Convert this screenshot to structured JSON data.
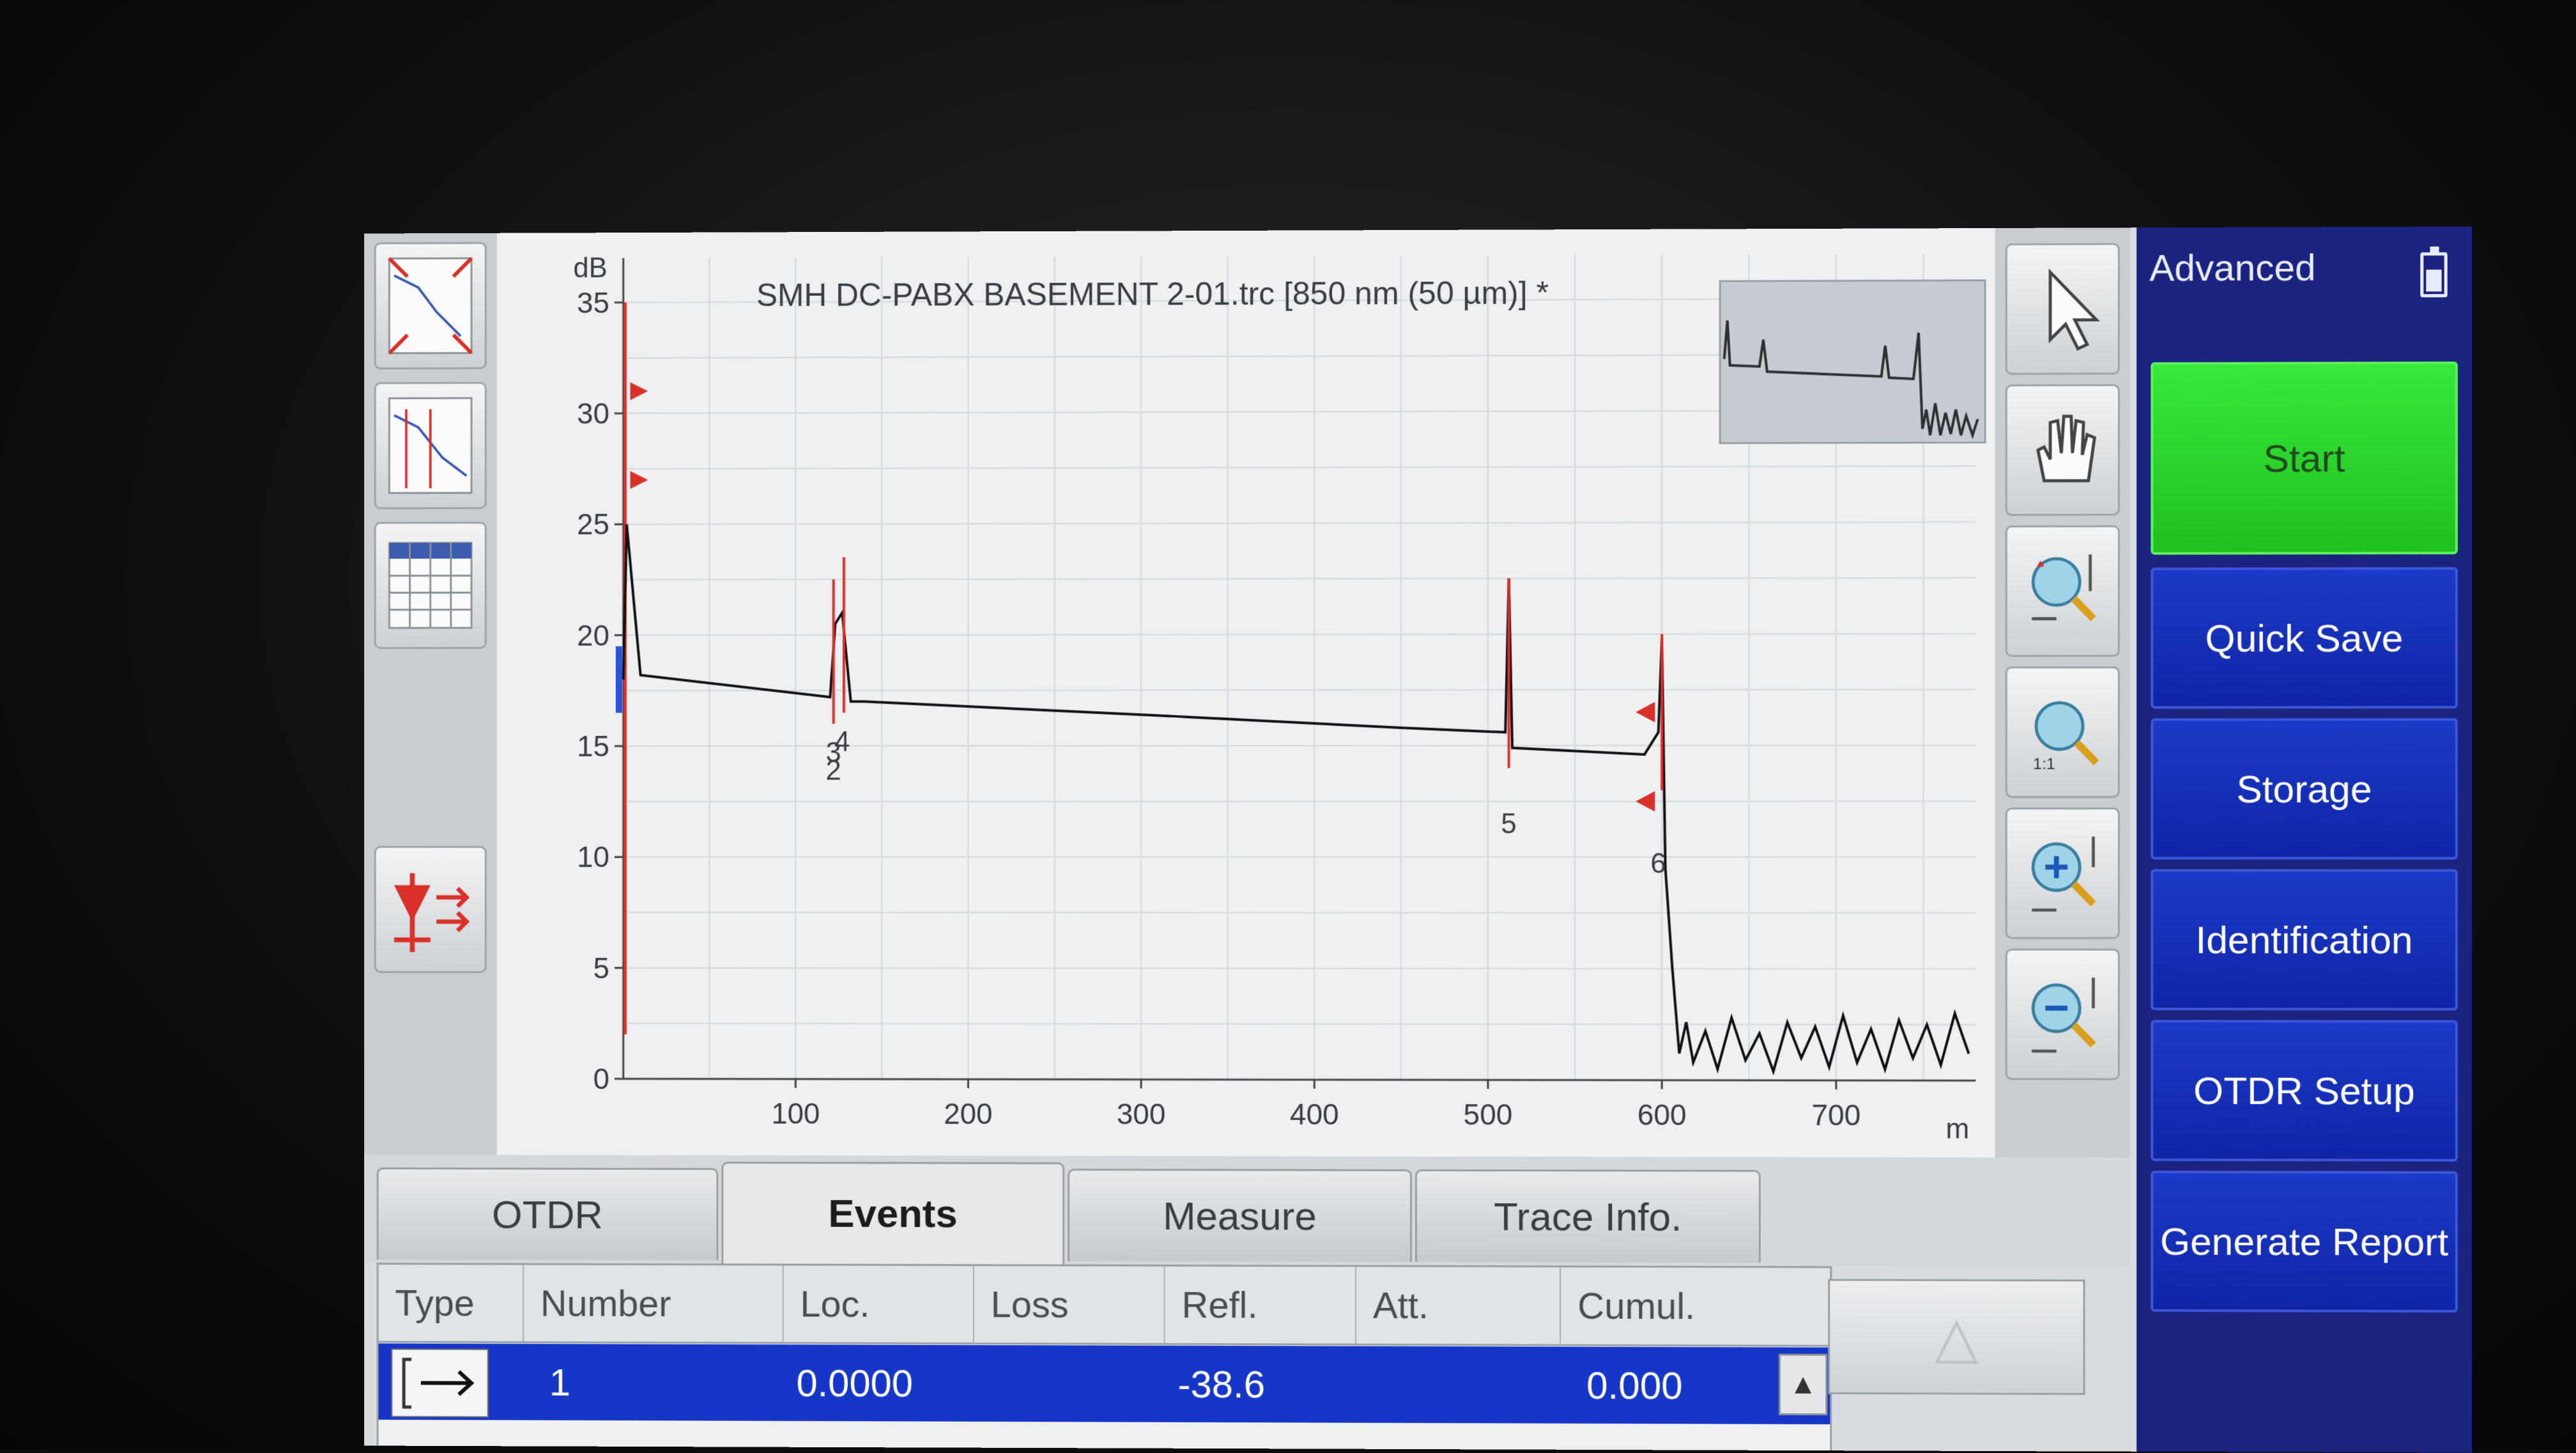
{
  "trace": {
    "title": "SMH DC-PABX BASEMENT 2-01.trc [850 nm (50 µm)] *"
  },
  "chart_data": {
    "type": "line",
    "title": "SMH DC-PABX BASEMENT 2-01.trc [850 nm (50 µm)] *",
    "ylabel": "dB",
    "xlabel": "m",
    "xlim": [
      0,
      780
    ],
    "ylim": [
      0,
      37
    ],
    "x_ticks": [
      "100",
      "200",
      "300",
      "400",
      "500",
      "600",
      "700"
    ],
    "y_ticks": [
      "0",
      "5",
      "10",
      "15",
      "20",
      "25",
      "30",
      "35"
    ],
    "grid": true,
    "series": [
      {
        "values_xy": [
          [
            0,
            18
          ],
          [
            2,
            25
          ],
          [
            10,
            18.2
          ],
          [
            120,
            17.2
          ],
          [
            123,
            20.5
          ],
          [
            127,
            21
          ],
          [
            132,
            17
          ],
          [
            140,
            17
          ],
          [
            300,
            16.4
          ],
          [
            450,
            15.8
          ],
          [
            510,
            15.6
          ],
          [
            512,
            22.5
          ],
          [
            514,
            14.9
          ],
          [
            590,
            14.6
          ],
          [
            598,
            15.6
          ],
          [
            600,
            19.8
          ],
          [
            602,
            9.5
          ],
          [
            606,
            5
          ],
          [
            610,
            1.2
          ],
          [
            614,
            2.6
          ],
          [
            618,
            0.8
          ],
          [
            625,
            2.2
          ],
          [
            632,
            0.5
          ],
          [
            640,
            2.8
          ],
          [
            648,
            0.9
          ],
          [
            656,
            2.1
          ],
          [
            664,
            0.4
          ],
          [
            672,
            2.6
          ],
          [
            680,
            1.0
          ],
          [
            688,
            2.4
          ],
          [
            696,
            0.6
          ],
          [
            704,
            2.9
          ],
          [
            712,
            0.8
          ],
          [
            720,
            2.3
          ],
          [
            728,
            0.5
          ],
          [
            736,
            2.7
          ],
          [
            744,
            1.0
          ],
          [
            752,
            2.5
          ],
          [
            760,
            0.7
          ],
          [
            768,
            3.0
          ],
          [
            776,
            1.2
          ]
        ]
      }
    ],
    "events": [
      {
        "label": "2",
        "x": 122,
        "y": 15.2
      },
      {
        "label": "3",
        "x": 122,
        "y": 16.0
      },
      {
        "label": "4",
        "x": 127,
        "y": 16.5
      },
      {
        "label": "5",
        "x": 512,
        "y": 12.8
      },
      {
        "label": "6",
        "x": 598,
        "y": 11.0
      }
    ]
  },
  "tabs": [
    {
      "label": "OTDR"
    },
    {
      "label": "Events"
    },
    {
      "label": "Measure"
    },
    {
      "label": "Trace Info."
    }
  ],
  "function_panel": {
    "title": "Advanced",
    "buttons": [
      "Start",
      "Quick Save",
      "Storage",
      "Identification",
      "OTDR Setup",
      "Generate Report"
    ]
  },
  "events_table": {
    "headers": [
      "Type",
      "Number",
      "Loc.",
      "Loss",
      "Refl.",
      "Att.",
      "Cumul."
    ],
    "rows": [
      {
        "number": "1",
        "loc": "0.0000",
        "loss": "",
        "refl": "-38.6",
        "att": "",
        "cumul": "0.000"
      }
    ]
  },
  "colors": {
    "function_panel": "#1a2380",
    "start_button": "#2fd62e",
    "selected_row": "#1536c6",
    "trace": "#111111",
    "markers": "#d9302a"
  }
}
